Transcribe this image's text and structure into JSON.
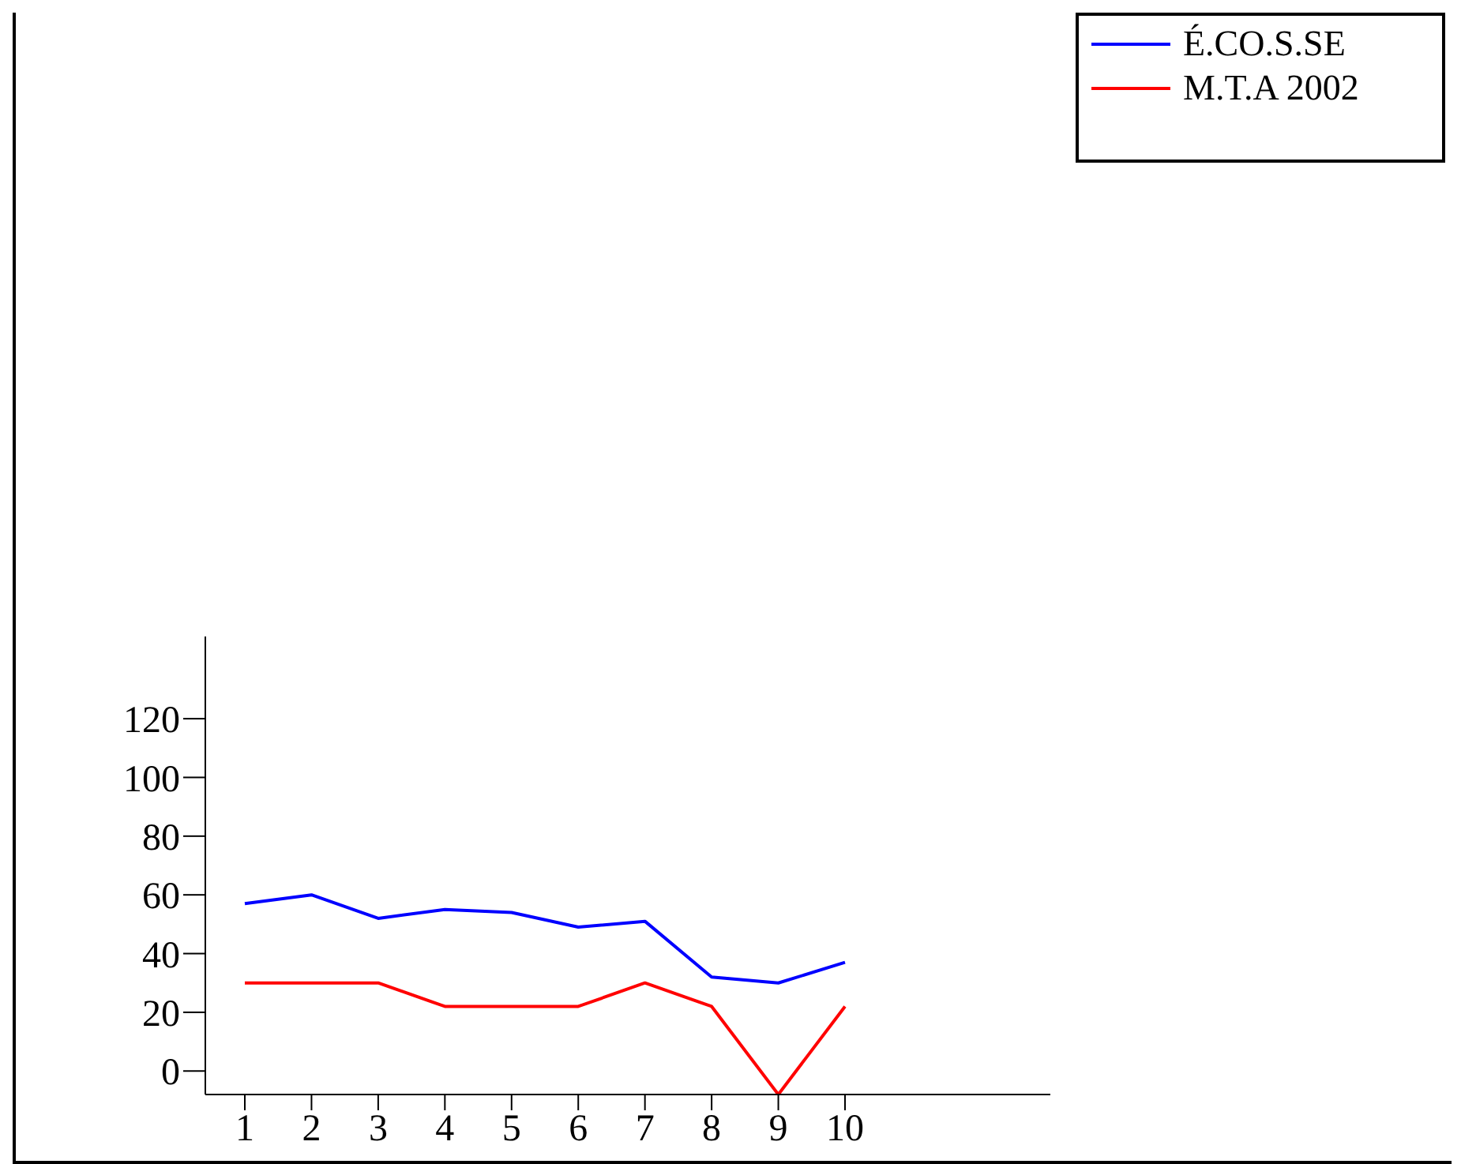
{
  "chart_data": {
    "type": "line",
    "categories": [
      "1",
      "2",
      "3",
      "4",
      "5",
      "6",
      "7",
      "8",
      "9",
      "10"
    ],
    "series": [
      {
        "name": "É.CO.S.SE",
        "color": "#0000ff",
        "values": [
          57,
          60,
          52,
          55,
          54,
          49,
          51,
          32,
          30,
          37
        ]
      },
      {
        "name": "M.T.A 2002",
        "color": "#ff0000",
        "values": [
          30,
          30,
          30,
          22,
          22,
          22,
          30,
          22,
          -8,
          22
        ]
      }
    ],
    "ylim": [
      -8,
      148
    ],
    "yticks": [
      0,
      20,
      40,
      60,
      80,
      100,
      120
    ],
    "grid": false,
    "legend": "top right",
    "marker": "none"
  }
}
